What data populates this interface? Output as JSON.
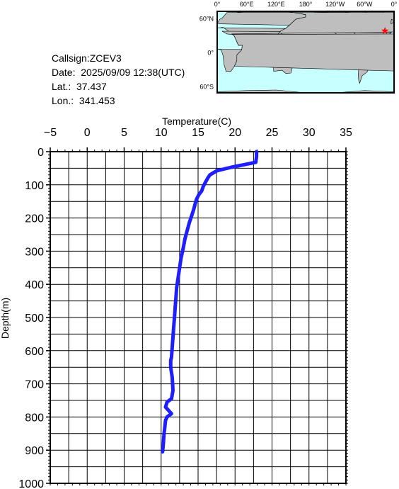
{
  "info": {
    "callsign": "Callsign:ZCEV3",
    "date": "Date:  2025/09/09 12:38(UTC)",
    "lat": "Lat.:  37.437",
    "lon": "Lon.:  341.453"
  },
  "map": {
    "lon_labels": [
      "0°",
      "60°E",
      "120°E",
      "180°",
      "120°W",
      "60°W",
      "0°"
    ],
    "lat_labels": [
      "60°N",
      "0°",
      "60°S"
    ],
    "ocean_color": "#c8ffff",
    "land_color": "#bebebe",
    "marker_color": "#ff0000",
    "marker": {
      "lat": 37.437,
      "lon": 341.453
    }
  },
  "chart_data": {
    "type": "line",
    "xlabel": "Temperature(C)",
    "ylabel": "Depth(m)",
    "xlim": [
      -5,
      35
    ],
    "ylim": [
      1000,
      0
    ],
    "x_ticks": [
      -5,
      0,
      5,
      10,
      15,
      20,
      25,
      30,
      35
    ],
    "y_ticks": [
      0,
      100,
      200,
      300,
      400,
      500,
      600,
      700,
      800,
      900,
      1000
    ],
    "grid": true,
    "line_color": "#1e1eff",
    "series": [
      {
        "x": [
          22.9,
          22.9,
          22.8,
          21.5,
          19.5,
          17.5,
          16.6,
          16.3,
          16.0,
          15.7,
          15.5,
          15.1,
          14.8,
          14.6,
          14.4,
          14.1,
          13.8,
          13.5,
          13.2,
          13.0,
          12.7,
          12.5,
          12.3,
          12.1,
          12.0,
          11.9,
          11.8,
          11.7,
          11.6,
          11.5,
          11.4,
          11.3,
          11.3,
          11.5,
          11.6,
          11.4,
          10.8,
          10.6,
          11.4,
          10.8,
          10.6,
          10.5,
          10.4,
          10.3,
          10.2
        ],
        "y": [
          0,
          15,
          32,
          38,
          47,
          58,
          70,
          80,
          92,
          105,
          118,
          130,
          143,
          158,
          175,
          195,
          215,
          240,
          265,
          290,
          320,
          350,
          380,
          410,
          440,
          470,
          500,
          530,
          560,
          590,
          620,
          630,
          650,
          680,
          720,
          745,
          755,
          770,
          790,
          800,
          810,
          830,
          850,
          880,
          905
        ]
      }
    ]
  }
}
